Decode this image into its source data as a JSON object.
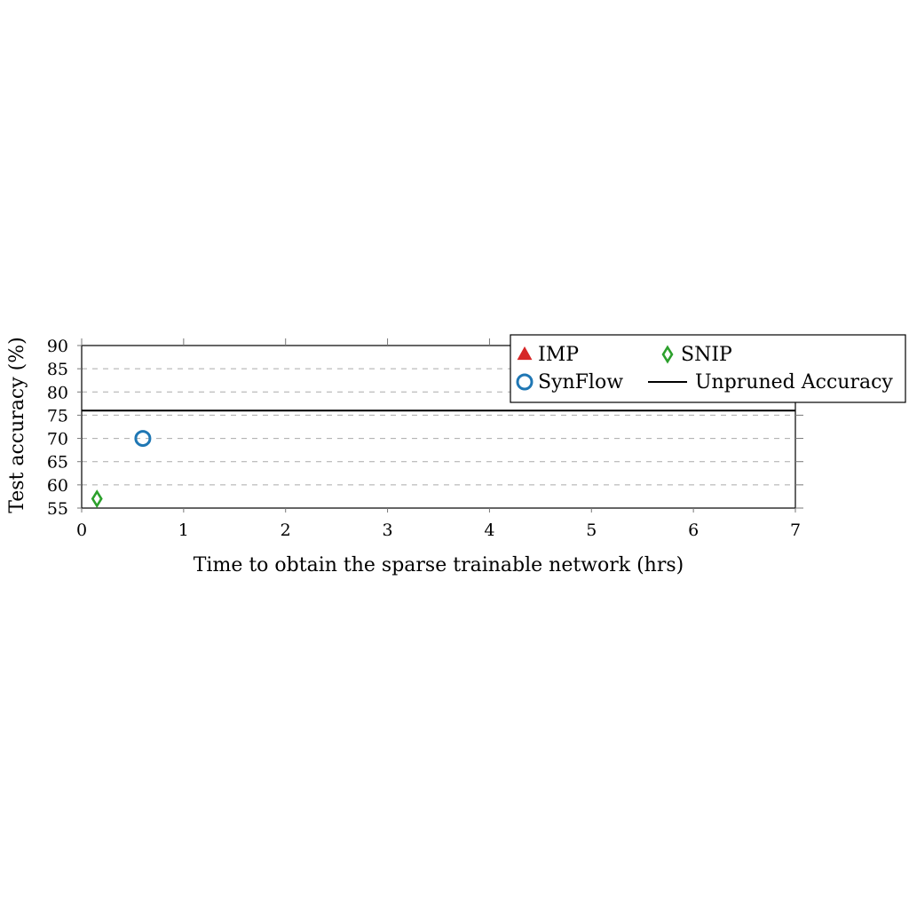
{
  "chart_data": {
    "type": "scatter",
    "xlabel": "Time to obtain the sparse trainable network (hrs)",
    "ylabel": "Test accuracy (%)",
    "xlim": [
      0,
      7
    ],
    "ylim": [
      55,
      90
    ],
    "x_ticks": [
      0,
      1,
      2,
      3,
      4,
      5,
      6,
      7
    ],
    "y_ticks": [
      55,
      60,
      65,
      70,
      75,
      80,
      85,
      90
    ],
    "grid": "horizontal dashed",
    "legend_position": "top-right",
    "series": [
      {
        "name": "IMP",
        "marker": "triangle",
        "color": "#d62728",
        "points": []
      },
      {
        "name": "SynFlow",
        "marker": "circle",
        "color": "#1f77b4",
        "points": [
          {
            "x": 0.6,
            "y": 70
          }
        ]
      },
      {
        "name": "SNIP",
        "marker": "diamond",
        "color": "#2ca02c",
        "points": [
          {
            "x": 0.15,
            "y": 57
          }
        ]
      }
    ],
    "reference_lines": [
      {
        "name": "Unpruned Accuracy",
        "y": 76,
        "color": "#000000"
      }
    ]
  }
}
